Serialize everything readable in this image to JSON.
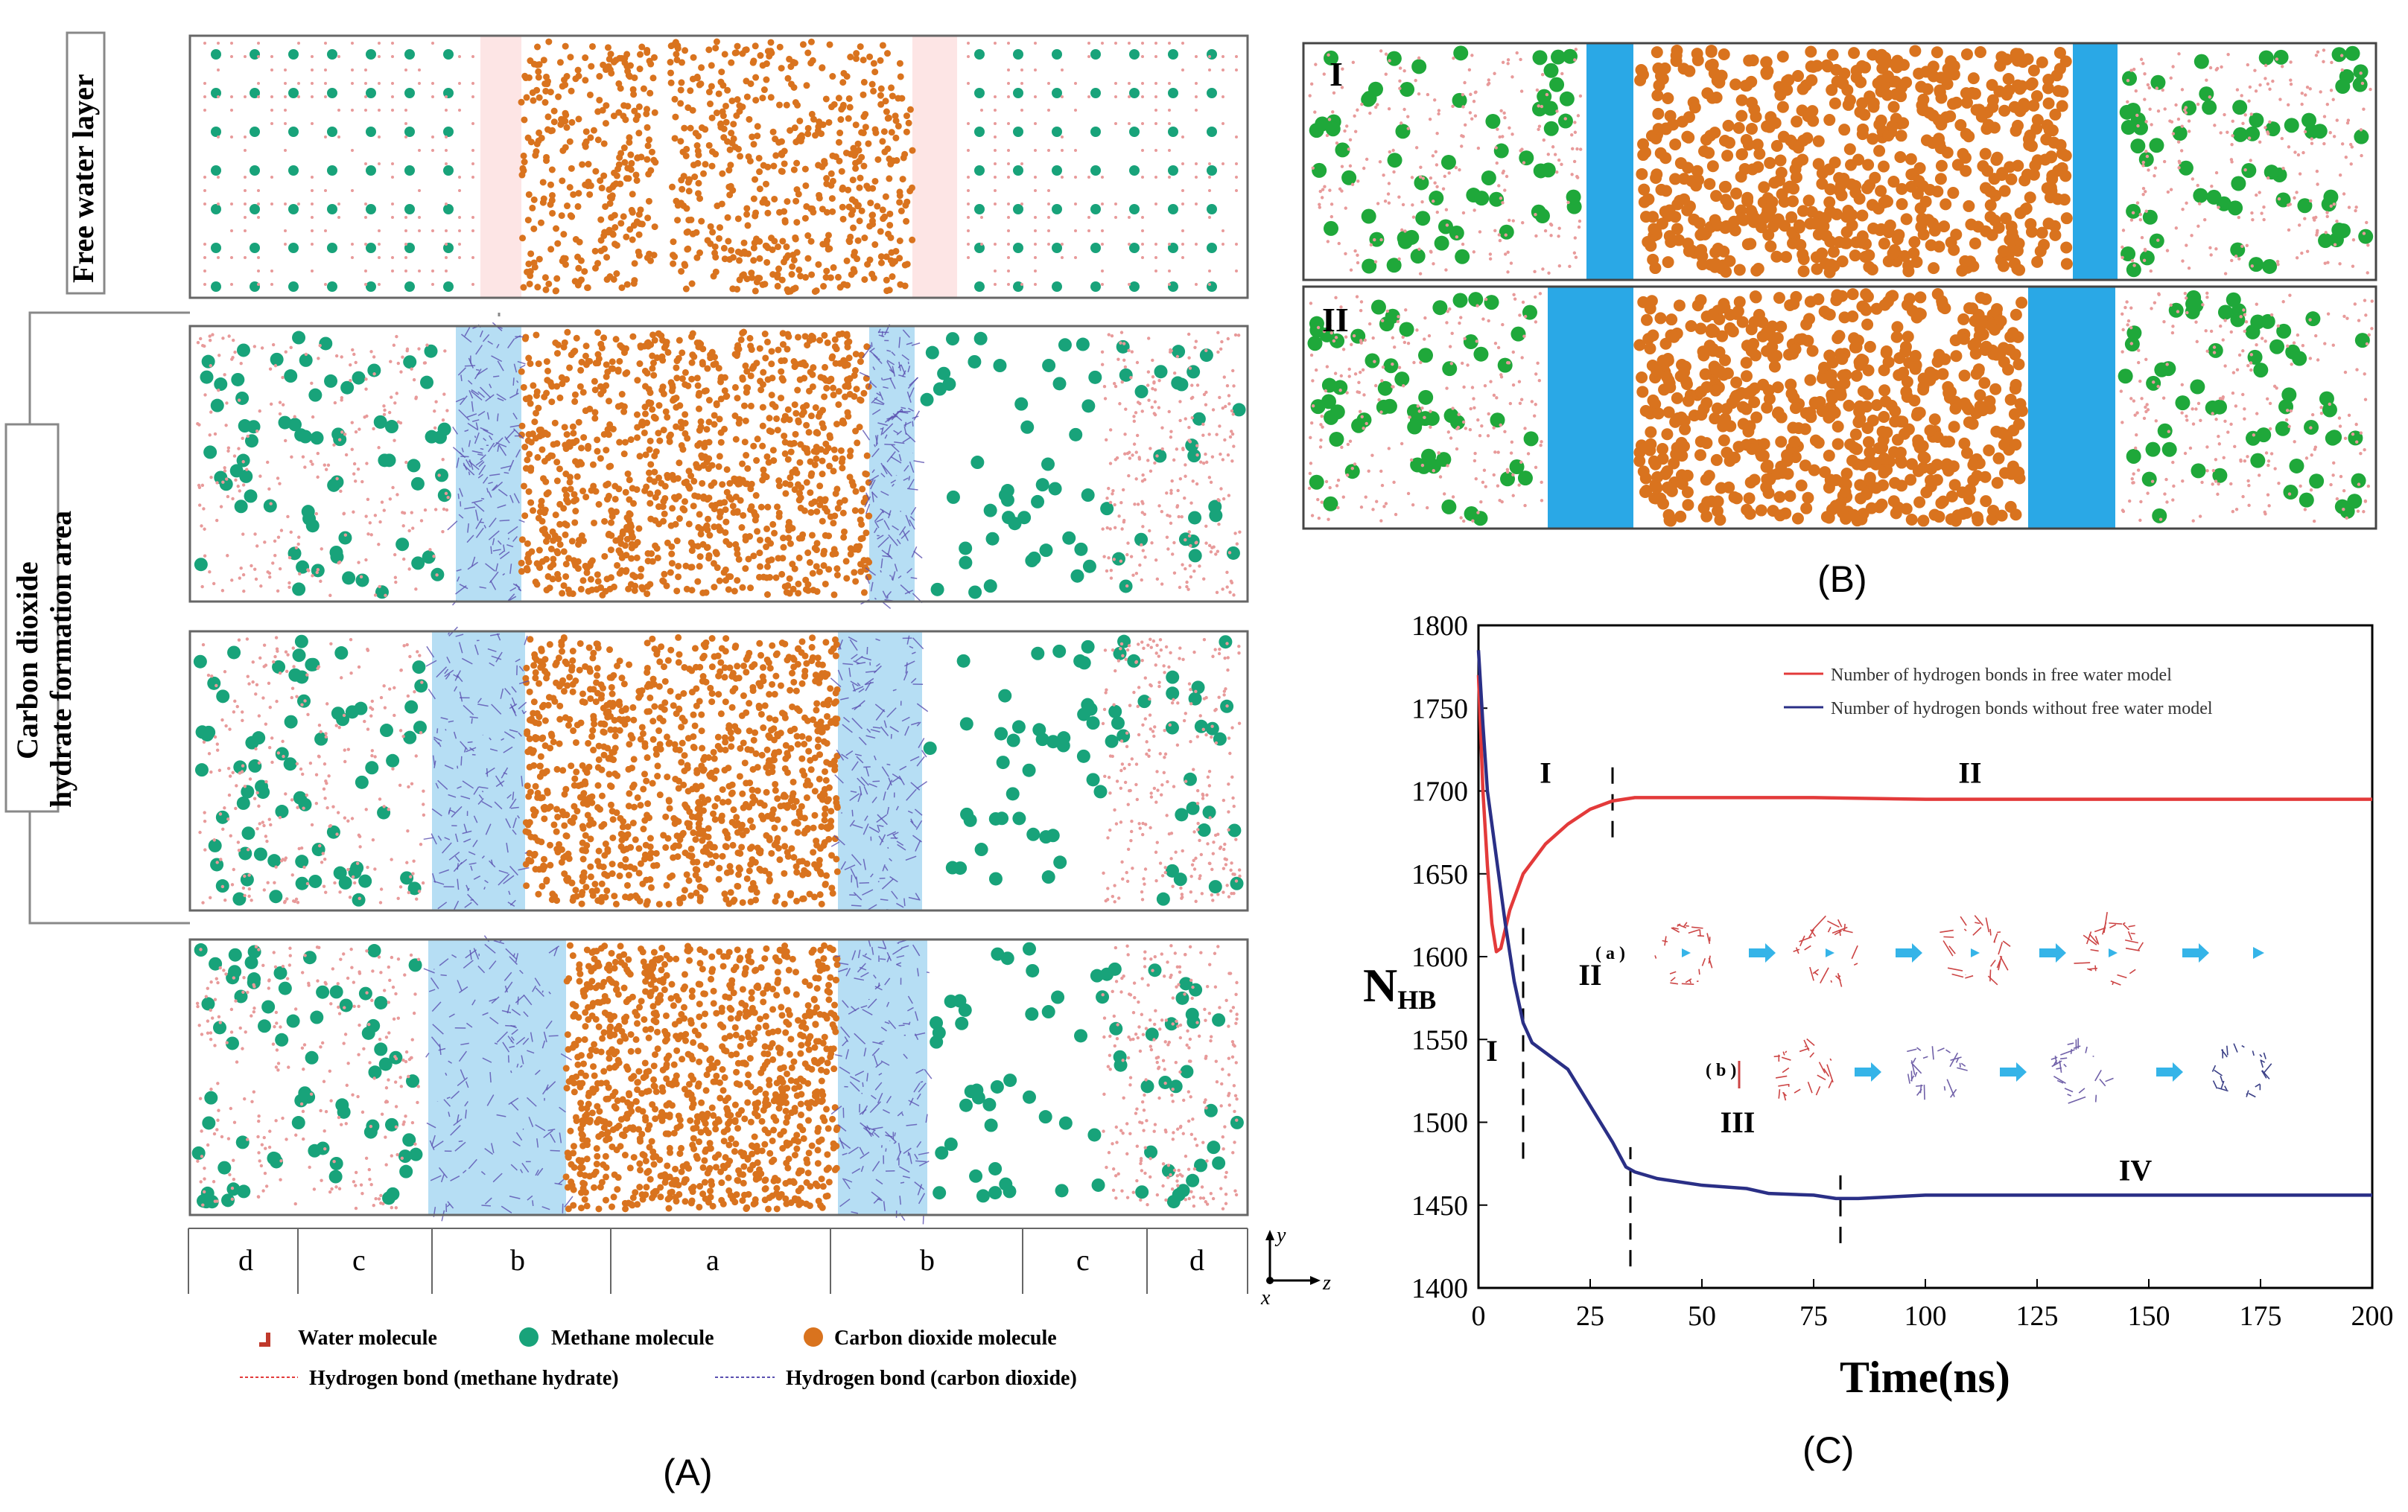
{
  "panel_a": {
    "side_label_top": "Free water layer",
    "side_label_mid_1": "Carbon dioxide",
    "side_label_mid_2": "hydrate formation area",
    "regions": [
      "d",
      "c",
      "b",
      "a",
      "b",
      "c",
      "d"
    ],
    "axes": {
      "y": "y",
      "z": "z",
      "x": "x"
    },
    "legend": {
      "water": "Water molecule",
      "methane": "Methane molecule",
      "co2": "Carbon dioxide molecule",
      "hb_methane": "Hydrogen bond (methane hydrate)",
      "hb_co2": "Hydrogen bond (carbon dioxide)"
    },
    "caption": "(A)"
  },
  "panel_b": {
    "row_labels": [
      "I",
      "II"
    ],
    "caption": "(B)"
  },
  "panel_c": {
    "caption": "(C)",
    "inset": {
      "a_label": "( a )",
      "b_label": "( b )"
    }
  },
  "colors": {
    "co2": "#d9731e",
    "methane": "#18a37a",
    "methane_b": "#1fa83a",
    "water": "#e89a9a",
    "hb_co2": "#5a4fb0",
    "highlight": "#a9d8f2",
    "highlight_b": "#2aa8e6",
    "red_line": "#e33a3a",
    "blue_line": "#2a2f86"
  },
  "chart_data": {
    "type": "line",
    "title": "",
    "xlabel": "Time(ns)",
    "ylabel": "N",
    "ylabel_sub": "HB",
    "xlim": [
      0,
      200
    ],
    "ylim": [
      1400,
      1800
    ],
    "xticks": [
      0,
      25,
      50,
      75,
      100,
      125,
      150,
      175,
      200
    ],
    "yticks": [
      1400,
      1450,
      1500,
      1550,
      1600,
      1650,
      1700,
      1750,
      1800
    ],
    "series": [
      {
        "name": "Number of hydrogen bonds in free water model",
        "color": "#e33a3a",
        "x": [
          0,
          1,
          2,
          3,
          4,
          5,
          7,
          10,
          15,
          20,
          25,
          30,
          35,
          40,
          50,
          75,
          100,
          150,
          200
        ],
        "y": [
          1770,
          1700,
          1655,
          1620,
          1603,
          1605,
          1628,
          1650,
          1668,
          1680,
          1689,
          1694,
          1696,
          1696,
          1696,
          1696,
          1695,
          1695,
          1695
        ]
      },
      {
        "name": "Number of hydrogen bonds without free water model",
        "color": "#2a2f86",
        "x": [
          0,
          1,
          2,
          4,
          6,
          8,
          10,
          12,
          15,
          20,
          25,
          30,
          33,
          35,
          40,
          50,
          60,
          65,
          75,
          80,
          85,
          100,
          150,
          200
        ],
        "y": [
          1785,
          1740,
          1700,
          1660,
          1620,
          1585,
          1560,
          1548,
          1542,
          1532,
          1510,
          1488,
          1473,
          1470,
          1466,
          1462,
          1460,
          1457,
          1456,
          1454,
          1454,
          1456,
          1456,
          1456
        ]
      }
    ],
    "annotations": [
      {
        "text": "I",
        "x": 15,
        "y": 1705
      },
      {
        "text": "II",
        "x": 110,
        "y": 1705
      },
      {
        "text": "I",
        "x": 3,
        "y": 1537
      },
      {
        "text": "II",
        "x": 25,
        "y": 1583
      },
      {
        "text": "III",
        "x": 58,
        "y": 1494
      },
      {
        "text": "IV",
        "x": 147,
        "y": 1465
      }
    ],
    "phase_dividers": [
      {
        "x": 30,
        "y_from": 1672,
        "y_to": 1715
      },
      {
        "x": 10,
        "y_from": 1478,
        "y_to": 1618
      },
      {
        "x": 34,
        "y_from": 1413,
        "y_to": 1485
      },
      {
        "x": 81,
        "y_from": 1427,
        "y_to": 1468
      }
    ]
  }
}
